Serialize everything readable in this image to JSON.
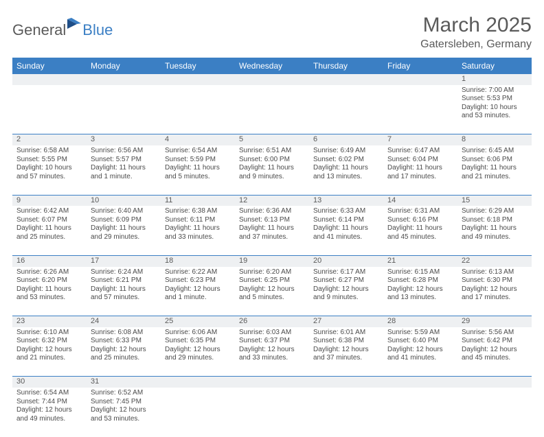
{
  "logo": {
    "general": "General",
    "blue": "Blue"
  },
  "title": "March 2025",
  "location": "Gatersleben, Germany",
  "weekdays": [
    "Sunday",
    "Monday",
    "Tuesday",
    "Wednesday",
    "Thursday",
    "Friday",
    "Saturday"
  ],
  "colors": {
    "header_bg": "#3b7fc4",
    "header_text": "#ffffff",
    "daynum_bg": "#eef0f2",
    "row_border": "#3b7fc4",
    "text": "#4a4a4a",
    "title_text": "#5a5a5a"
  },
  "weeks": [
    [
      null,
      null,
      null,
      null,
      null,
      null,
      {
        "n": "1",
        "sr": "Sunrise: 7:00 AM",
        "ss": "Sunset: 5:53 PM",
        "dl": "Daylight: 10 hours and 53 minutes."
      }
    ],
    [
      {
        "n": "2",
        "sr": "Sunrise: 6:58 AM",
        "ss": "Sunset: 5:55 PM",
        "dl": "Daylight: 10 hours and 57 minutes."
      },
      {
        "n": "3",
        "sr": "Sunrise: 6:56 AM",
        "ss": "Sunset: 5:57 PM",
        "dl": "Daylight: 11 hours and 1 minute."
      },
      {
        "n": "4",
        "sr": "Sunrise: 6:54 AM",
        "ss": "Sunset: 5:59 PM",
        "dl": "Daylight: 11 hours and 5 minutes."
      },
      {
        "n": "5",
        "sr": "Sunrise: 6:51 AM",
        "ss": "Sunset: 6:00 PM",
        "dl": "Daylight: 11 hours and 9 minutes."
      },
      {
        "n": "6",
        "sr": "Sunrise: 6:49 AM",
        "ss": "Sunset: 6:02 PM",
        "dl": "Daylight: 11 hours and 13 minutes."
      },
      {
        "n": "7",
        "sr": "Sunrise: 6:47 AM",
        "ss": "Sunset: 6:04 PM",
        "dl": "Daylight: 11 hours and 17 minutes."
      },
      {
        "n": "8",
        "sr": "Sunrise: 6:45 AM",
        "ss": "Sunset: 6:06 PM",
        "dl": "Daylight: 11 hours and 21 minutes."
      }
    ],
    [
      {
        "n": "9",
        "sr": "Sunrise: 6:42 AM",
        "ss": "Sunset: 6:07 PM",
        "dl": "Daylight: 11 hours and 25 minutes."
      },
      {
        "n": "10",
        "sr": "Sunrise: 6:40 AM",
        "ss": "Sunset: 6:09 PM",
        "dl": "Daylight: 11 hours and 29 minutes."
      },
      {
        "n": "11",
        "sr": "Sunrise: 6:38 AM",
        "ss": "Sunset: 6:11 PM",
        "dl": "Daylight: 11 hours and 33 minutes."
      },
      {
        "n": "12",
        "sr": "Sunrise: 6:36 AM",
        "ss": "Sunset: 6:13 PM",
        "dl": "Daylight: 11 hours and 37 minutes."
      },
      {
        "n": "13",
        "sr": "Sunrise: 6:33 AM",
        "ss": "Sunset: 6:14 PM",
        "dl": "Daylight: 11 hours and 41 minutes."
      },
      {
        "n": "14",
        "sr": "Sunrise: 6:31 AM",
        "ss": "Sunset: 6:16 PM",
        "dl": "Daylight: 11 hours and 45 minutes."
      },
      {
        "n": "15",
        "sr": "Sunrise: 6:29 AM",
        "ss": "Sunset: 6:18 PM",
        "dl": "Daylight: 11 hours and 49 minutes."
      }
    ],
    [
      {
        "n": "16",
        "sr": "Sunrise: 6:26 AM",
        "ss": "Sunset: 6:20 PM",
        "dl": "Daylight: 11 hours and 53 minutes."
      },
      {
        "n": "17",
        "sr": "Sunrise: 6:24 AM",
        "ss": "Sunset: 6:21 PM",
        "dl": "Daylight: 11 hours and 57 minutes."
      },
      {
        "n": "18",
        "sr": "Sunrise: 6:22 AM",
        "ss": "Sunset: 6:23 PM",
        "dl": "Daylight: 12 hours and 1 minute."
      },
      {
        "n": "19",
        "sr": "Sunrise: 6:20 AM",
        "ss": "Sunset: 6:25 PM",
        "dl": "Daylight: 12 hours and 5 minutes."
      },
      {
        "n": "20",
        "sr": "Sunrise: 6:17 AM",
        "ss": "Sunset: 6:27 PM",
        "dl": "Daylight: 12 hours and 9 minutes."
      },
      {
        "n": "21",
        "sr": "Sunrise: 6:15 AM",
        "ss": "Sunset: 6:28 PM",
        "dl": "Daylight: 12 hours and 13 minutes."
      },
      {
        "n": "22",
        "sr": "Sunrise: 6:13 AM",
        "ss": "Sunset: 6:30 PM",
        "dl": "Daylight: 12 hours and 17 minutes."
      }
    ],
    [
      {
        "n": "23",
        "sr": "Sunrise: 6:10 AM",
        "ss": "Sunset: 6:32 PM",
        "dl": "Daylight: 12 hours and 21 minutes."
      },
      {
        "n": "24",
        "sr": "Sunrise: 6:08 AM",
        "ss": "Sunset: 6:33 PM",
        "dl": "Daylight: 12 hours and 25 minutes."
      },
      {
        "n": "25",
        "sr": "Sunrise: 6:06 AM",
        "ss": "Sunset: 6:35 PM",
        "dl": "Daylight: 12 hours and 29 minutes."
      },
      {
        "n": "26",
        "sr": "Sunrise: 6:03 AM",
        "ss": "Sunset: 6:37 PM",
        "dl": "Daylight: 12 hours and 33 minutes."
      },
      {
        "n": "27",
        "sr": "Sunrise: 6:01 AM",
        "ss": "Sunset: 6:38 PM",
        "dl": "Daylight: 12 hours and 37 minutes."
      },
      {
        "n": "28",
        "sr": "Sunrise: 5:59 AM",
        "ss": "Sunset: 6:40 PM",
        "dl": "Daylight: 12 hours and 41 minutes."
      },
      {
        "n": "29",
        "sr": "Sunrise: 5:56 AM",
        "ss": "Sunset: 6:42 PM",
        "dl": "Daylight: 12 hours and 45 minutes."
      }
    ],
    [
      {
        "n": "30",
        "sr": "Sunrise: 6:54 AM",
        "ss": "Sunset: 7:44 PM",
        "dl": "Daylight: 12 hours and 49 minutes."
      },
      {
        "n": "31",
        "sr": "Sunrise: 6:52 AM",
        "ss": "Sunset: 7:45 PM",
        "dl": "Daylight: 12 hours and 53 minutes."
      },
      null,
      null,
      null,
      null,
      null
    ]
  ]
}
